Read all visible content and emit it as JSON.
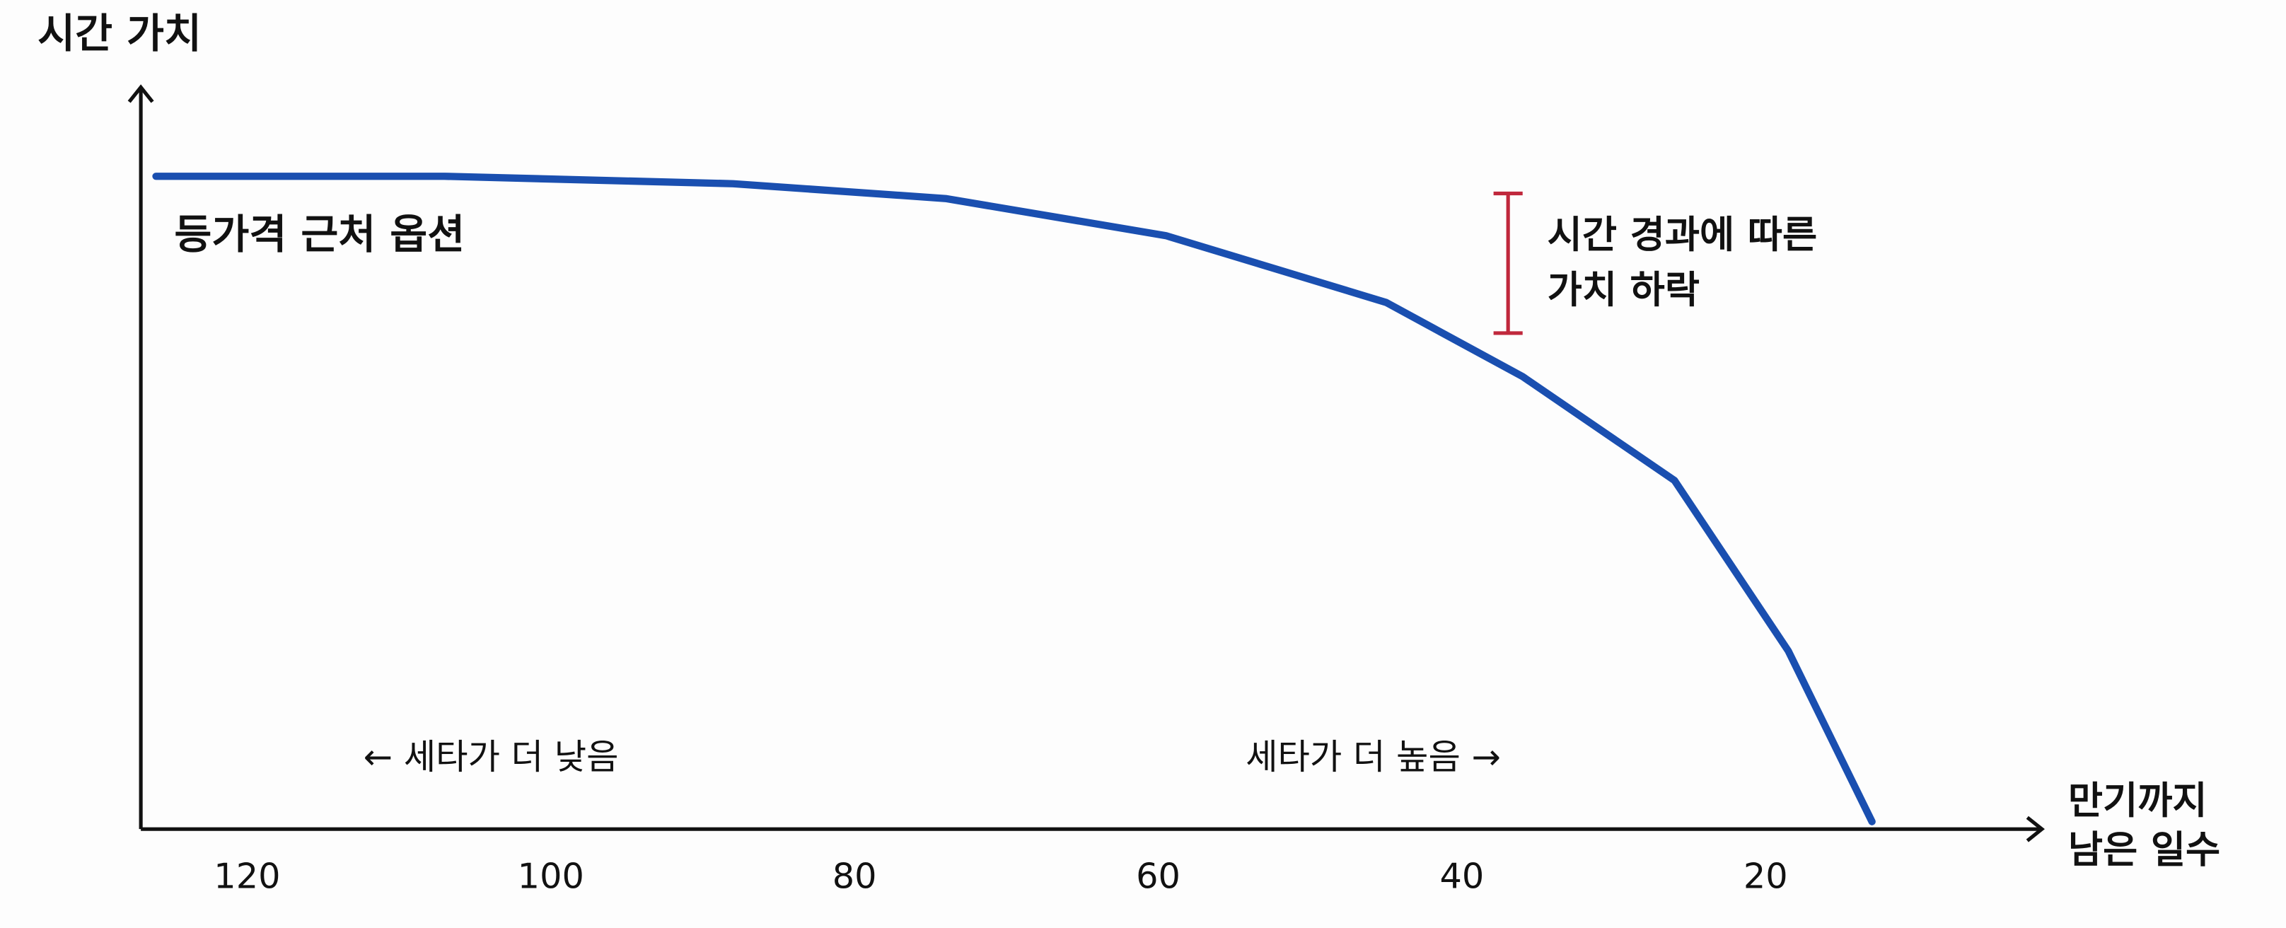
{
  "chart_data": {
    "type": "line",
    "title": "시간 가치",
    "x_label_lines": [
      "만기까지",
      "남은 일수"
    ],
    "x": [
      126,
      107,
      88,
      74,
      59.5,
      45,
      36,
      26,
      18.5,
      13
    ],
    "series": [
      {
        "name": "등가격 근처 옵션",
        "color": "#1a4fb0",
        "values": [
          88,
          88,
          87,
          85,
          80,
          71,
          61,
          47,
          24,
          1
        ]
      }
    ],
    "xlim": [
      127,
      2
    ],
    "xticks": [
      120,
      100,
      80,
      60,
      40,
      20
    ],
    "ylim": [
      0,
      100
    ],
    "annotations": {
      "decay_lines": [
        "시간 경과에 따른",
        "가치 하락"
      ],
      "lower_theta": "← 세타가 더 낮음",
      "higher_theta": "세타가 더 높음 →"
    }
  }
}
